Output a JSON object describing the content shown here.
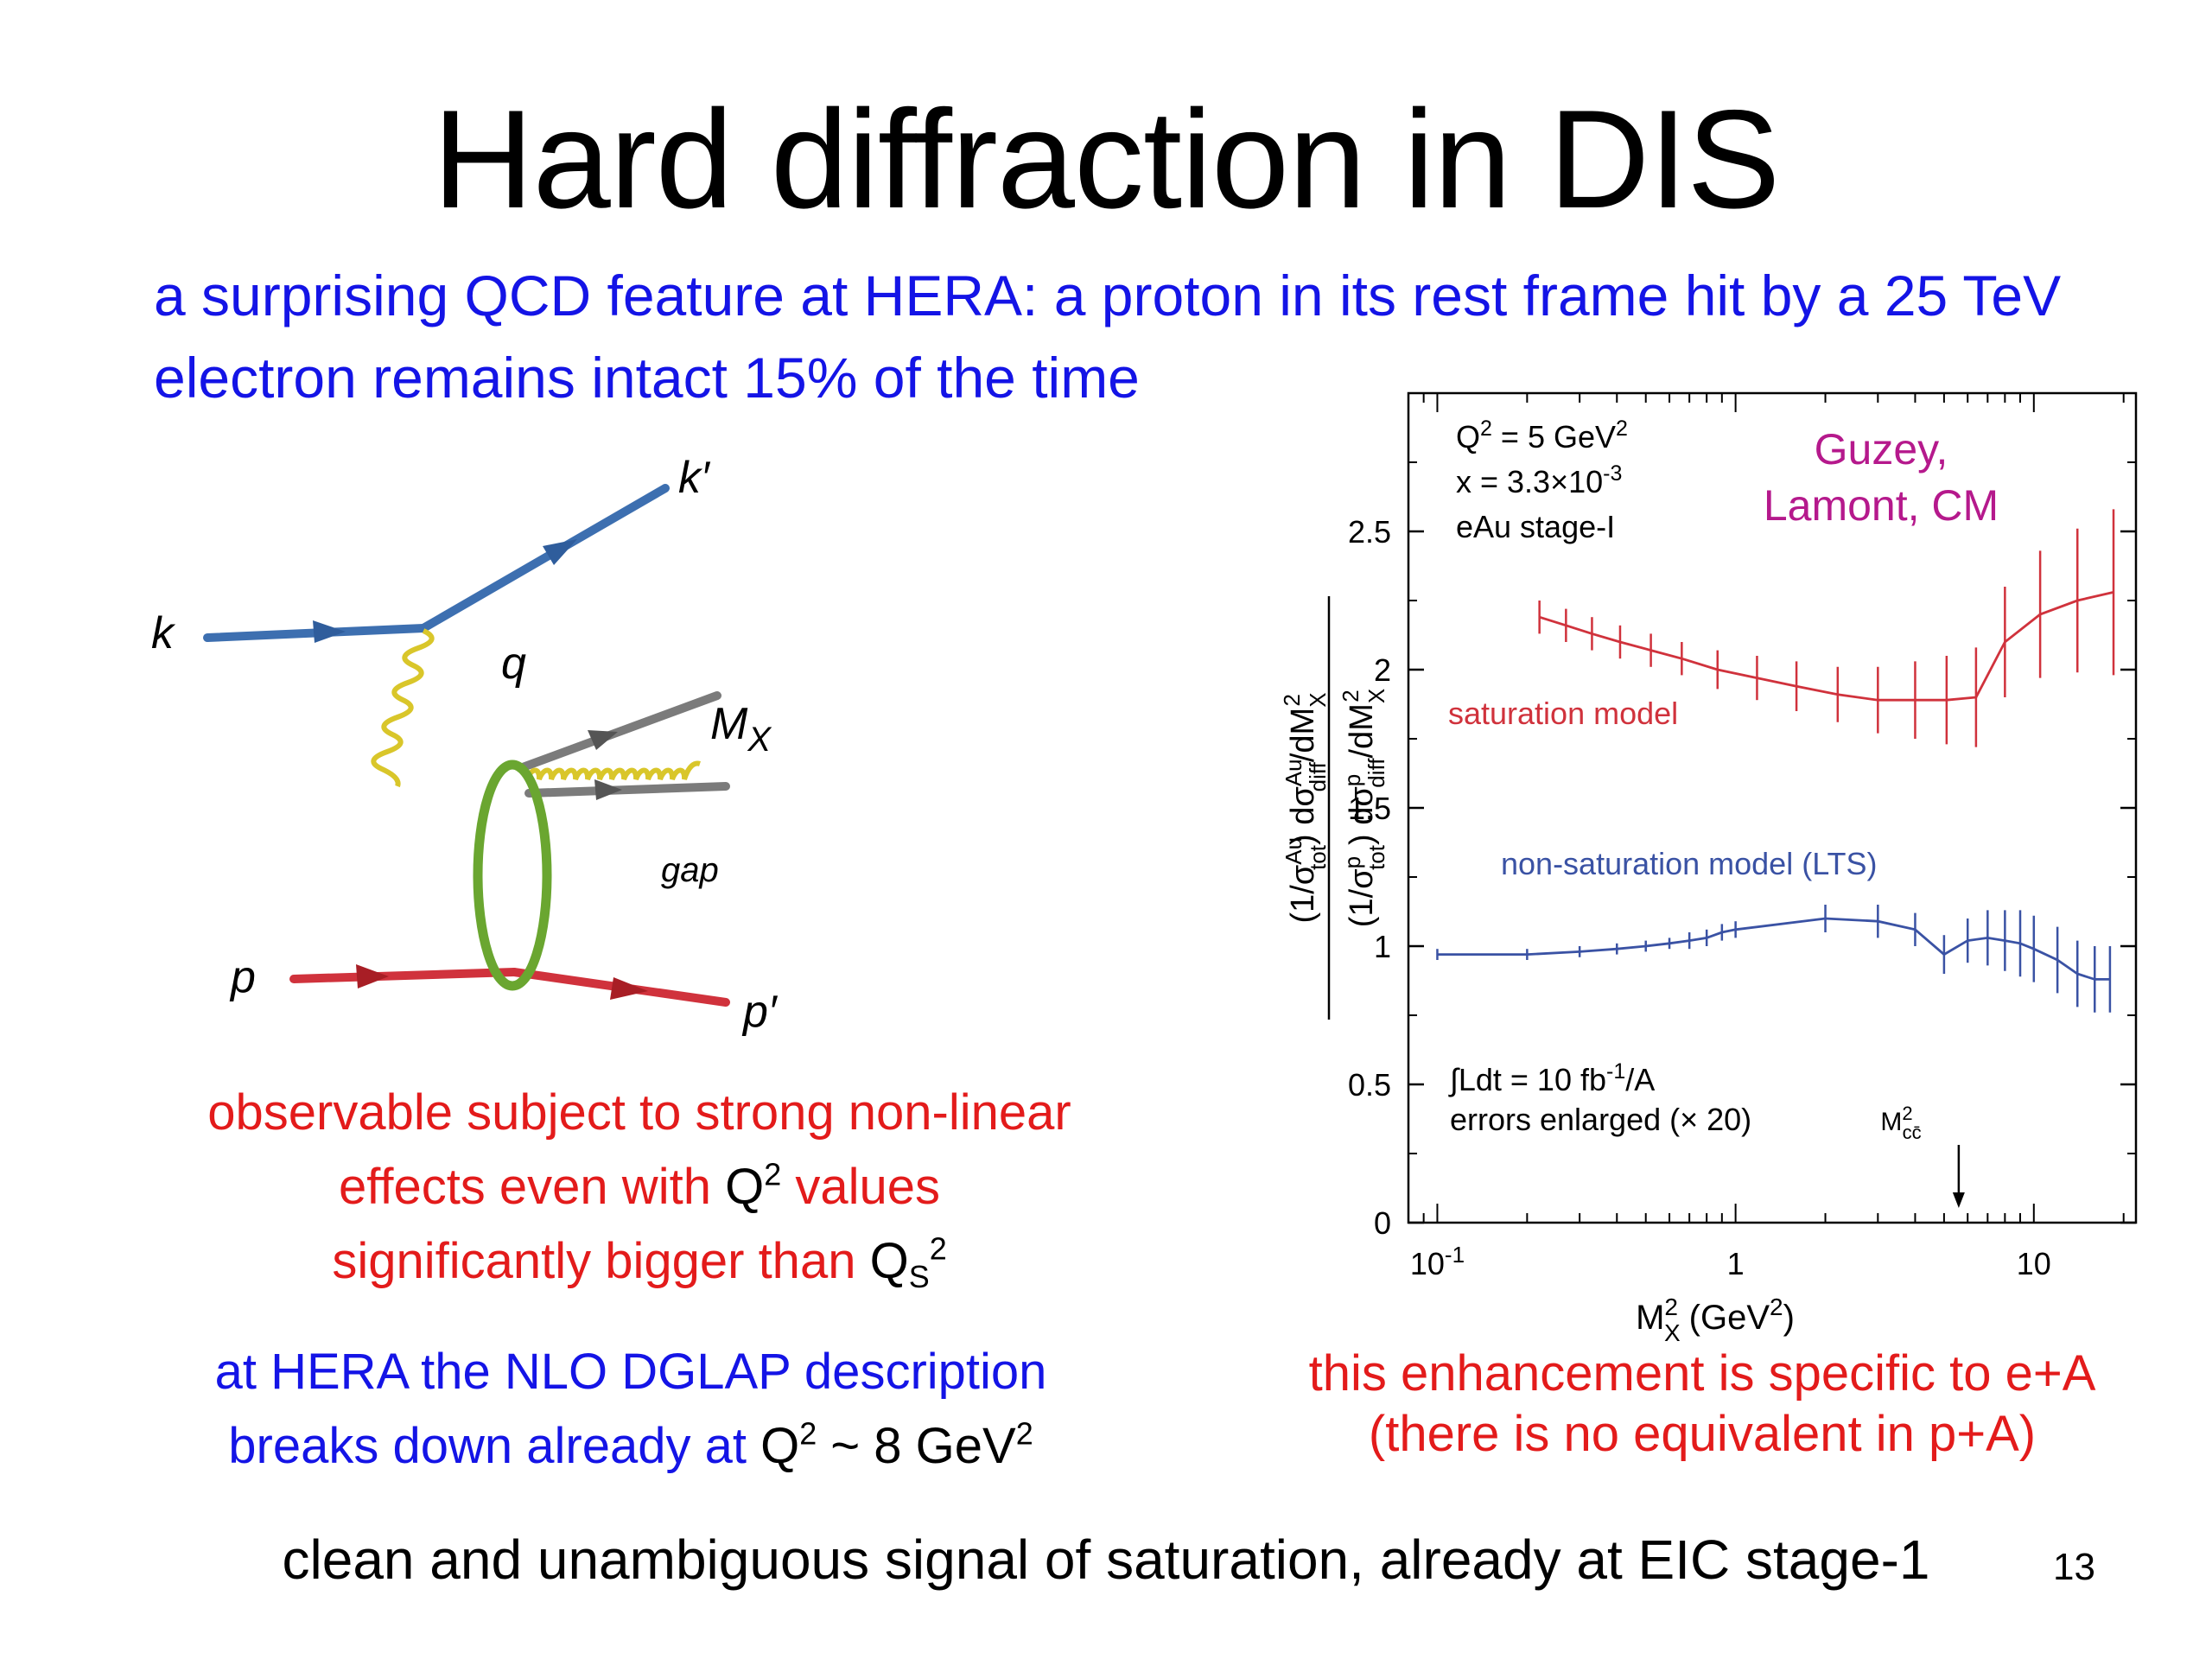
{
  "slide": {
    "title": "Hard diffraction in DIS",
    "intro_text": "a surprising QCD feature at HERA: a proton in its rest frame hit by a 25 TeV electron remains intact 15% of the time",
    "observable": {
      "line1": "observable subject to strong non-linear",
      "line2_prefix": "effects even with ",
      "line2_q": "Q",
      "line2_q_sup": "2",
      "line2_suffix": " values",
      "line3_prefix": "significantly bigger than ",
      "line3_q": "Q",
      "line3_q_sub": "S",
      "line3_q_sup": "2"
    },
    "hera_note": {
      "line1": "at HERA the NLO DGLAP description",
      "line2_prefix": "breaks down already at ",
      "line2_q": "Q",
      "line2_q_sup": "2",
      "line2_mid": " ~ 8 GeV",
      "line2_sup": "2"
    },
    "enhancement": {
      "line1": "this enhancement is specific to e+A",
      "line2": "(there is no equivalent in p+A)"
    },
    "bottom_line": "clean and unambiguous signal of saturation, already at EIC stage-1",
    "slide_number": "13",
    "colors": {
      "blue_text": "#1414e6",
      "red_text": "#e31b1b"
    }
  },
  "diagram": {
    "labels": {
      "k": "k",
      "k_prime": "k′",
      "q": "q",
      "mx": "M",
      "mx_sub": "X",
      "gap": "gap",
      "p": "p",
      "p_prime": "p′"
    },
    "colors": {
      "electron": "#3d6fb0",
      "proton": "#d0323c",
      "photon": "#d9c62a",
      "pomeron": "#6aa630",
      "quark": "#7b7b7b",
      "gluon": "#d9c62a"
    }
  },
  "chart_data": {
    "type": "line",
    "x_scale": "log",
    "xlim": [
      0.08,
      22
    ],
    "ylim": [
      0,
      3
    ],
    "xlabel": "M",
    "xlabel_sub": "X",
    "xlabel_sup": "2",
    "xlabel_unit": "(GeV",
    "xlabel_unit_sup": "2",
    "xlabel_unit_close": ")",
    "x_ticks": [
      {
        "value": 0.1,
        "base": "10",
        "exp": "-1"
      },
      {
        "value": 1,
        "base": "1",
        "exp": ""
      },
      {
        "value": 10,
        "base": "10",
        "exp": ""
      }
    ],
    "y_ticks": [
      0,
      0.5,
      1,
      1.5,
      2,
      2.5
    ],
    "y_tick_labels": [
      "0",
      "0.5",
      "1",
      "1.5",
      "2",
      "2.5"
    ],
    "ylabel": "(1/σ_tot^Au) dσ_diff^Au/dM_X^2 / (1/σ_tot^p) dσ_diff^p/dM_X^2",
    "ylabel_parts": {
      "num_pre": "(1/σ",
      "num_sup": "Au",
      "num_sub": "tot",
      "num_mid": ") dσ",
      "num_sup2": "Au",
      "num_sub2": "diff",
      "num_post": "/dM",
      "num_sub3": "X",
      "num_sup3": "2",
      "den_pre": "(1/σ",
      "den_sup": "p",
      "den_sub": "tot",
      "den_mid": ") dσ",
      "den_sup2": "p",
      "den_sub2": "diff",
      "den_post": "/dM",
      "den_sub3": "X",
      "den_sup3": "2"
    },
    "info_box": {
      "line1": "Q",
      "line1_sup": "2",
      "line1_rest": " = 5 GeV",
      "line1_rest_sup": "2",
      "line2": "x = 3.3×10",
      "line2_sup": "-3",
      "line3": "eAu stage-I"
    },
    "authors": {
      "line1": "Guzey,",
      "line2": "Lamont, CM"
    },
    "lumi": {
      "line1": "∫Ldt = 10 fb",
      "line1_sup": "-1",
      "line1_rest": "/A",
      "line2": "errors enlarged (× 20)"
    },
    "marker_label": {
      "m": "M",
      "sup": "2",
      "sub": "cc̄"
    },
    "marker_x": 5.6,
    "series": [
      {
        "name": "saturation model",
        "color": "#d0323c",
        "points": [
          {
            "x": 0.22,
            "y": 2.19,
            "err": 0.06
          },
          {
            "x": 0.27,
            "y": 2.16,
            "err": 0.06
          },
          {
            "x": 0.33,
            "y": 2.13,
            "err": 0.06
          },
          {
            "x": 0.41,
            "y": 2.1,
            "err": 0.06
          },
          {
            "x": 0.52,
            "y": 2.07,
            "err": 0.06
          },
          {
            "x": 0.66,
            "y": 2.04,
            "err": 0.06
          },
          {
            "x": 0.87,
            "y": 2.0,
            "err": 0.07
          },
          {
            "x": 1.18,
            "y": 1.97,
            "err": 0.08
          },
          {
            "x": 1.6,
            "y": 1.94,
            "err": 0.09
          },
          {
            "x": 2.2,
            "y": 1.91,
            "err": 0.1
          },
          {
            "x": 3.0,
            "y": 1.89,
            "err": 0.12
          },
          {
            "x": 4.0,
            "y": 1.89,
            "err": 0.14
          },
          {
            "x": 5.1,
            "y": 1.89,
            "err": 0.16
          },
          {
            "x": 6.4,
            "y": 1.9,
            "err": 0.18
          },
          {
            "x": 8.0,
            "y": 2.1,
            "err": 0.2
          },
          {
            "x": 10.5,
            "y": 2.2,
            "err": 0.23
          },
          {
            "x": 14.0,
            "y": 2.25,
            "err": 0.26
          },
          {
            "x": 18.5,
            "y": 2.28,
            "err": 0.3
          }
        ]
      },
      {
        "name": "non-saturation model (LTS)",
        "color": "#3a52a4",
        "points": [
          {
            "x": 0.1,
            "y": 0.97,
            "err": 0.02
          },
          {
            "x": 0.2,
            "y": 0.97,
            "err": 0.02
          },
          {
            "x": 0.3,
            "y": 0.98,
            "err": 0.02
          },
          {
            "x": 0.4,
            "y": 0.99,
            "err": 0.02
          },
          {
            "x": 0.5,
            "y": 1.0,
            "err": 0.02
          },
          {
            "x": 0.6,
            "y": 1.01,
            "err": 0.02
          },
          {
            "x": 0.7,
            "y": 1.02,
            "err": 0.03
          },
          {
            "x": 0.8,
            "y": 1.03,
            "err": 0.03
          },
          {
            "x": 0.9,
            "y": 1.05,
            "err": 0.03
          },
          {
            "x": 1.0,
            "y": 1.06,
            "err": 0.03
          },
          {
            "x": 2.0,
            "y": 1.1,
            "err": 0.05
          },
          {
            "x": 3.0,
            "y": 1.09,
            "err": 0.06
          },
          {
            "x": 4.0,
            "y": 1.06,
            "err": 0.06
          },
          {
            "x": 5.0,
            "y": 0.97,
            "err": 0.07
          },
          {
            "x": 6.0,
            "y": 1.02,
            "err": 0.08
          },
          {
            "x": 7.0,
            "y": 1.03,
            "err": 0.1
          },
          {
            "x": 8.0,
            "y": 1.02,
            "err": 0.11
          },
          {
            "x": 9.0,
            "y": 1.01,
            "err": 0.12
          },
          {
            "x": 10.0,
            "y": 0.99,
            "err": 0.12
          },
          {
            "x": 12.0,
            "y": 0.95,
            "err": 0.12
          },
          {
            "x": 14.0,
            "y": 0.9,
            "err": 0.12
          },
          {
            "x": 16.0,
            "y": 0.88,
            "err": 0.12
          },
          {
            "x": 18.0,
            "y": 0.88,
            "err": 0.12
          }
        ]
      }
    ]
  }
}
